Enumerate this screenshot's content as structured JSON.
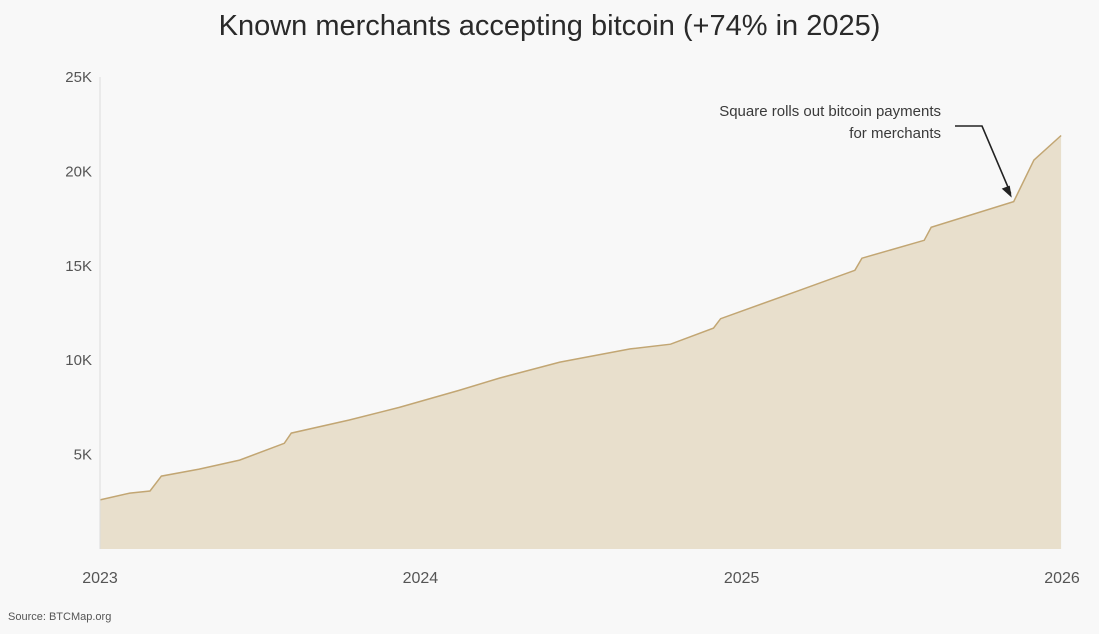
{
  "chart_data": {
    "type": "area",
    "title": "Known merchants accepting bitcoin (+74% in 2025)",
    "xlabel": "",
    "ylabel": "",
    "x_ticks": [
      "2023",
      "2024",
      "2025",
      "2026"
    ],
    "y_ticks": [
      "5K",
      "10K",
      "15K",
      "20K",
      "25K"
    ],
    "y_tick_values": [
      5000,
      10000,
      15000,
      20000,
      25000
    ],
    "xlim": [
      "2023-01-01",
      "2026-01-01"
    ],
    "ylim": [
      0,
      25000
    ],
    "grid": false,
    "colors": {
      "fill": "#e8dfcc",
      "line": "#c2a673",
      "annotation_arrow": "#222222"
    },
    "series": [
      {
        "x": [
          "2023-01-01",
          "2023-02-04",
          "2023-02-27",
          "2023-03-12",
          "2023-04-24",
          "2023-06-09",
          "2023-07-30",
          "2023-08-07",
          "2023-10-12",
          "2023-12-08",
          "2024-02-14",
          "2024-03-31",
          "2024-06-08",
          "2024-08-27",
          "2024-10-12",
          "2024-11-30",
          "2024-12-08",
          "2025-03-08",
          "2025-05-10",
          "2025-05-18",
          "2025-07-28",
          "2025-08-05",
          "2025-11-07",
          "2025-11-30",
          "2025-12-31"
        ],
        "values": [
          2600,
          2960,
          3070,
          3860,
          4230,
          4710,
          5600,
          6140,
          6830,
          7500,
          8400,
          9050,
          9900,
          10600,
          10850,
          11700,
          12200,
          13700,
          14760,
          15400,
          16350,
          17040,
          18400,
          20600,
          21900
        ]
      }
    ],
    "annotations": [
      {
        "text_lines": [
          "Square rolls out bitcoin payments",
          "for merchants"
        ],
        "x": "2025-11-07",
        "y": 18400
      }
    ],
    "source": "Source: BTCMap.org"
  }
}
